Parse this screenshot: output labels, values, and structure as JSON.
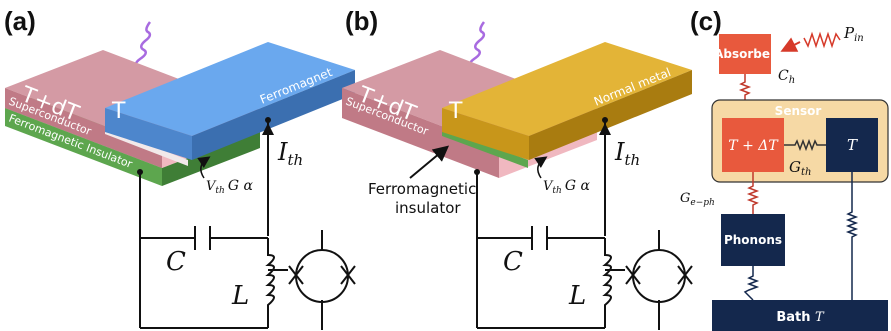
{
  "panels": {
    "a": {
      "label": "(a)",
      "hot_label": "T+dT",
      "top_layer_label": "Ferromagnet",
      "top_temp": "T",
      "layer1": "Superconductor",
      "layer2": "Ferromagnetic Insulator",
      "current_base": "I",
      "current_sub": "th",
      "response_V": "V",
      "response_sub": "th",
      "response_rest": "G α",
      "capacitor": "C",
      "inductor": "L"
    },
    "b": {
      "label": "(b)",
      "hot_label": "T+dT",
      "top_layer_label": "Normal metal",
      "top_temp": "T",
      "layer1": "Superconductor",
      "callout_line1": "Ferromagnetic",
      "callout_line2": "insulator",
      "current_base": "I",
      "current_sub": "th",
      "response_V": "V",
      "response_sub": "th",
      "response_rest": "G α",
      "capacitor": "C",
      "inductor": "L"
    },
    "c": {
      "label": "(c)",
      "absorber": "Absorber",
      "power_base": "P",
      "power_sub": "in",
      "heat_cap_base": "C",
      "heat_cap_sub": "h",
      "sensor": "Sensor",
      "sensor_hot": "T + ΔT",
      "sensor_ref": "T",
      "g_th_base": "G",
      "g_th_sub": "th",
      "g_eph_base": "G",
      "g_eph_sub": "e−ph",
      "phonons": "Phonons",
      "bath_prefix": "Bath ",
      "bath_T": "T"
    }
  },
  "colors": {
    "superconductor": "#c98a95",
    "ferromagnet": "#5a95dd",
    "normal_metal": "#d9a520",
    "insulator_green": "#5da64e",
    "photon": "#a86be0",
    "red_block": "#e8593d",
    "navy_block": "#14284d",
    "sensor_bg": "#f6d9a5"
  }
}
